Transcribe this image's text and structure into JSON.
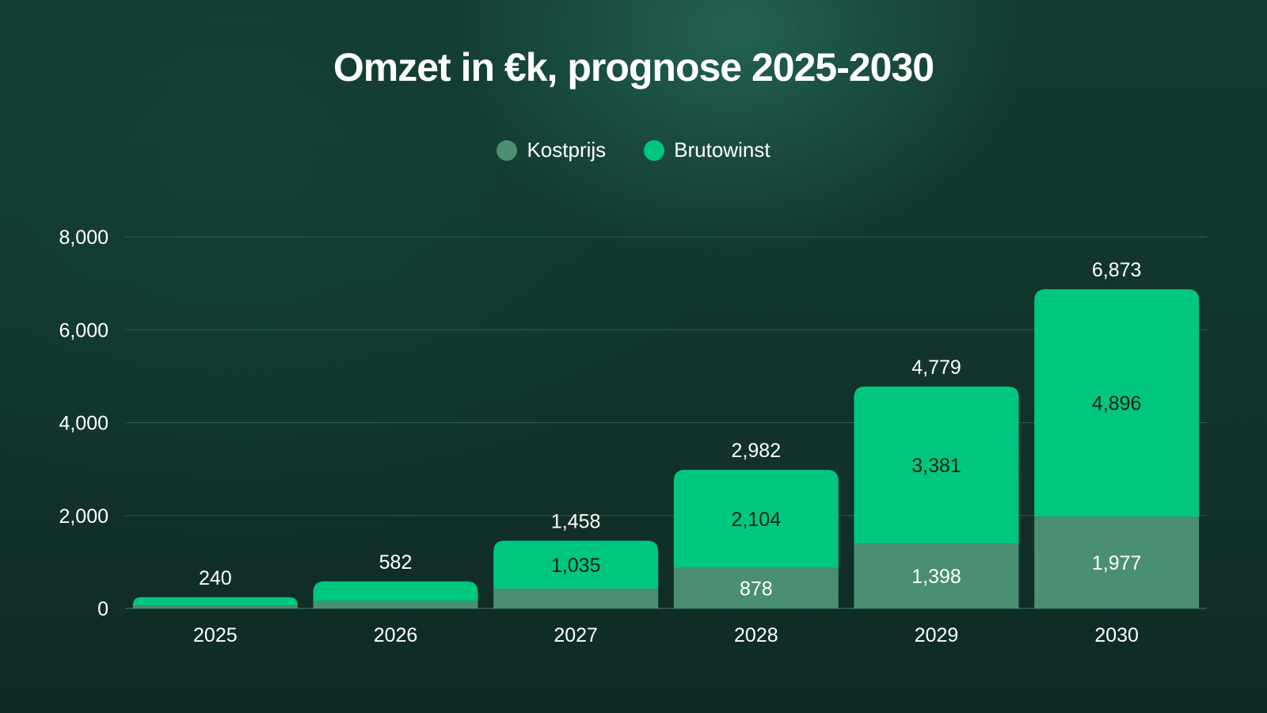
{
  "chart_data": {
    "type": "bar",
    "stacked": true,
    "title": "Omzet in €k, prognose 2025-2030",
    "categories": [
      "2025",
      "2026",
      "2027",
      "2028",
      "2029",
      "2030"
    ],
    "series": [
      {
        "name": "Kostprijs",
        "color": "#4a8f72",
        "values": [
          65,
          160,
          423,
          878,
          1398,
          1977
        ],
        "labels": [
          "",
          "",
          "",
          "878",
          "1,398",
          "1,977"
        ]
      },
      {
        "name": "Brutowinst",
        "color": "#00c77f",
        "values": [
          175,
          422,
          1035,
          2104,
          3381,
          4896
        ],
        "labels": [
          "",
          "",
          "1,035",
          "2,104",
          "3,381",
          "4,896"
        ]
      }
    ],
    "totals": [
      "240",
      "582",
      "1,458",
      "2,982",
      "4,779",
      "6,873"
    ],
    "yticks": [
      "0",
      "2,000",
      "4,000",
      "6,000",
      "8,000"
    ],
    "ylim": [
      0,
      8000
    ],
    "grid": true,
    "legend_position": "top-center",
    "colors": {
      "background": "#12342c",
      "gridline": "#2f5a4e",
      "label_on_dark_segment": "#ffffff",
      "label_on_bright_segment": "#0b1f1a"
    }
  }
}
